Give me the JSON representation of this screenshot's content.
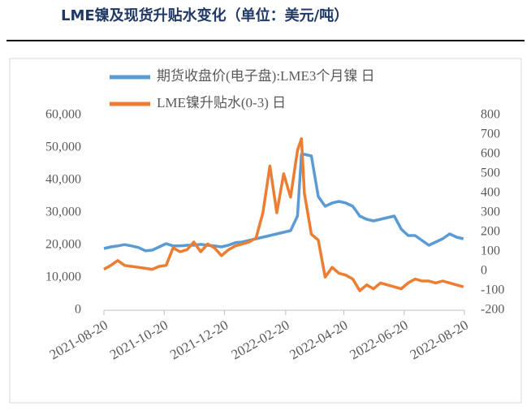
{
  "title": "LME镍及现货升贴水变化（单位：美元/吨）",
  "chart_data": {
    "type": "line",
    "x": [
      "2021-08-20",
      "2021-08-27",
      "2021-09-03",
      "2021-09-10",
      "2021-09-17",
      "2021-09-24",
      "2021-10-01",
      "2021-10-08",
      "2021-10-15",
      "2021-10-22",
      "2021-10-29",
      "2021-11-05",
      "2021-11-12",
      "2021-11-19",
      "2021-11-26",
      "2021-12-03",
      "2021-12-10",
      "2021-12-17",
      "2021-12-24",
      "2021-12-31",
      "2022-01-07",
      "2022-01-14",
      "2022-01-21",
      "2022-01-28",
      "2022-02-04",
      "2022-02-11",
      "2022-02-18",
      "2022-02-25",
      "2022-03-04",
      "2022-03-08",
      "2022-03-11",
      "2022-03-18",
      "2022-03-25",
      "2022-04-01",
      "2022-04-08",
      "2022-04-15",
      "2022-04-22",
      "2022-04-29",
      "2022-05-06",
      "2022-05-13",
      "2022-05-20",
      "2022-05-27",
      "2022-06-03",
      "2022-06-10",
      "2022-06-17",
      "2022-06-24",
      "2022-07-01",
      "2022-07-08",
      "2022-07-15",
      "2022-07-22",
      "2022-07-29",
      "2022-08-05",
      "2022-08-12",
      "2022-08-19"
    ],
    "series": [
      {
        "name": "期货收盘价(电子盘):LME3个月镍 日",
        "color": "#5b9bd5",
        "axis": "y",
        "values": [
          19000,
          19500,
          19800,
          20200,
          19800,
          19300,
          18300,
          18500,
          19500,
          20500,
          19800,
          19800,
          20000,
          20000,
          20300,
          20000,
          19800,
          19500,
          20000,
          20800,
          21000,
          21500,
          22000,
          22500,
          23000,
          23500,
          24000,
          24500,
          29000,
          48000,
          48000,
          47500,
          35000,
          32000,
          33000,
          33500,
          33000,
          32000,
          29000,
          28000,
          27500,
          28000,
          28500,
          29000,
          25000,
          23000,
          23000,
          21500,
          20000,
          21000,
          22000,
          23500,
          22500,
          22000
        ]
      },
      {
        "name": "LME镍升贴水(0-3) 日",
        "color": "#ed7d31",
        "axis": "y2",
        "values": [
          10,
          30,
          55,
          30,
          25,
          20,
          15,
          10,
          25,
          30,
          120,
          100,
          110,
          150,
          100,
          140,
          120,
          80,
          110,
          130,
          140,
          150,
          170,
          300,
          540,
          300,
          500,
          380,
          620,
          680,
          400,
          190,
          160,
          -30,
          20,
          -10,
          -20,
          -40,
          -100,
          -70,
          -90,
          -60,
          -70,
          -80,
          -90,
          -60,
          -40,
          -50,
          -50,
          -60,
          -50,
          -60,
          -70,
          -80
        ]
      }
    ],
    "xlim": [
      "2021-08-20",
      "2022-08-20"
    ],
    "xticks": [
      "2021-08-20",
      "2021-10-20",
      "2021-12-20",
      "2022-02-20",
      "2022-04-20",
      "2022-06-20",
      "2022-08-20"
    ],
    "ylim": [
      0,
      60000
    ],
    "yticks": [
      0,
      {
        "value": 10000,
        "label": "10,000"
      },
      {
        "value": 20000,
        "label": "20,000"
      },
      {
        "value": 30000,
        "label": "30,000"
      },
      {
        "value": 40000,
        "label": "40,000"
      },
      {
        "value": 50000,
        "label": "50,000"
      },
      {
        "value": 60000,
        "label": "60,000"
      }
    ],
    "y2lim": [
      -200,
      800
    ],
    "y2ticks": [
      -200,
      -100,
      0,
      100,
      200,
      300,
      400,
      500,
      600,
      700,
      800
    ],
    "legend": "top"
  }
}
